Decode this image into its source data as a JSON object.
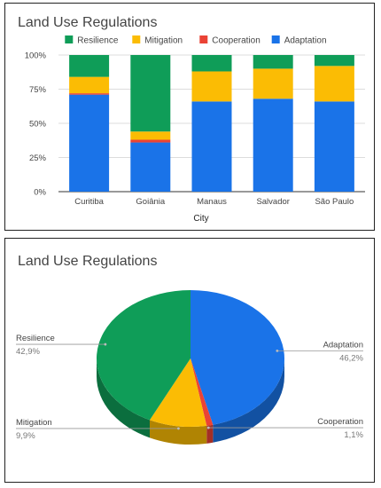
{
  "chart_data": [
    {
      "type": "bar",
      "stacked": "percent",
      "title": "Land Use Regulations",
      "xlabel": "City",
      "ylabel": "",
      "y_ticks": [
        "0%",
        "25%",
        "50%",
        "75%",
        "100%"
      ],
      "ylim": [
        0,
        100
      ],
      "legend_position": "top",
      "grid": true,
      "categories": [
        "Curitiba",
        "Goiânia",
        "Manaus",
        "Salvador",
        "São Paulo"
      ],
      "series": [
        {
          "name": "Adaptation",
          "color": "#1a73e8",
          "values": [
            71,
            36,
            66,
            68,
            66
          ]
        },
        {
          "name": "Cooperation",
          "color": "#ea4335",
          "values": [
            1,
            2,
            0,
            0,
            0
          ]
        },
        {
          "name": "Mitigation",
          "color": "#fbbc04",
          "values": [
            12,
            6,
            22,
            22,
            26
          ]
        },
        {
          "name": "Resilience",
          "color": "#0f9d58",
          "values": [
            16,
            56,
            12,
            10,
            8
          ]
        }
      ],
      "legend_order": [
        "Resilience",
        "Mitigation",
        "Cooperation",
        "Adaptation"
      ]
    },
    {
      "type": "pie",
      "style": "3d",
      "title": "Land Use Regulations",
      "slices": [
        {
          "name": "Adaptation",
          "label": "46,2%",
          "value": 46.2,
          "color": "#1a73e8"
        },
        {
          "name": "Cooperation",
          "label": "1,1%",
          "value": 1.1,
          "color": "#ea4335"
        },
        {
          "name": "Mitigation",
          "label": "9,9%",
          "value": 9.9,
          "color": "#fbbc04"
        },
        {
          "name": "Resilience",
          "label": "42,9%",
          "value": 42.9,
          "color": "#0f9d58"
        }
      ]
    }
  ]
}
